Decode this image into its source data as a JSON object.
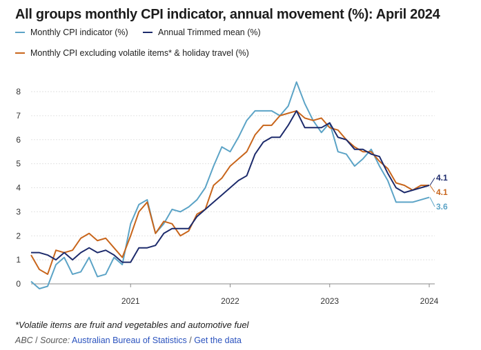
{
  "chart_data": {
    "type": "line",
    "title": "All groups monthly CPI indicator, annual movement (%): April 2024",
    "xlabel": "",
    "ylabel": "",
    "ylim": [
      0,
      8
    ],
    "yticks": [
      0,
      1,
      2,
      3,
      4,
      5,
      6,
      7,
      8
    ],
    "xticks": [
      {
        "label": "2021",
        "month_index": 12
      },
      {
        "label": "2022",
        "month_index": 24
      },
      {
        "label": "2023",
        "month_index": 36
      },
      {
        "label": "2024",
        "month_index": 48
      }
    ],
    "x_start": "Jan 2020",
    "x_end": "Apr 2024",
    "series": [
      {
        "name": "Monthly CPI indicator (%)",
        "color": "#5ba3c6",
        "end_label": "3.6",
        "values": [
          0.1,
          -0.2,
          -0.1,
          0.8,
          1.1,
          0.4,
          0.5,
          1.1,
          0.3,
          0.4,
          1.1,
          0.8,
          2.5,
          3.3,
          3.5,
          2.1,
          2.5,
          3.1,
          3.0,
          3.2,
          3.5,
          4.0,
          4.9,
          5.7,
          5.5,
          6.1,
          6.8,
          7.2,
          7.2,
          7.2,
          7.0,
          7.4,
          8.4,
          7.5,
          6.8,
          6.3,
          6.7,
          5.5,
          5.4,
          4.9,
          5.2,
          5.6,
          4.9,
          4.3,
          3.4,
          3.4,
          3.4,
          3.5,
          3.6
        ]
      },
      {
        "name": "Annual Trimmed mean (%)",
        "color": "#1c2a6b",
        "end_label": "4.1",
        "values": [
          1.3,
          1.3,
          1.2,
          1.0,
          1.3,
          1.0,
          1.3,
          1.5,
          1.3,
          1.4,
          1.2,
          0.9,
          0.9,
          1.5,
          1.5,
          1.6,
          2.1,
          2.3,
          2.3,
          2.3,
          2.8,
          3.1,
          3.4,
          3.7,
          4.0,
          4.3,
          4.5,
          5.4,
          5.9,
          6.1,
          6.1,
          6.6,
          7.2,
          6.5,
          6.5,
          6.5,
          6.7,
          6.1,
          6.0,
          5.6,
          5.6,
          5.4,
          5.3,
          4.6,
          4.0,
          3.8,
          3.9,
          4.0,
          4.1
        ]
      },
      {
        "name": "Monthly CPI excluding volatile items* & holiday travel (%)",
        "color": "#c8651b",
        "end_label": "4.1",
        "values": [
          1.2,
          0.6,
          0.4,
          1.4,
          1.3,
          1.4,
          1.9,
          2.1,
          1.8,
          1.9,
          1.5,
          1.1,
          2.0,
          3.0,
          3.4,
          2.1,
          2.6,
          2.5,
          2.0,
          2.2,
          2.9,
          3.1,
          4.1,
          4.4,
          4.9,
          5.2,
          5.5,
          6.2,
          6.6,
          6.6,
          7.0,
          7.1,
          7.2,
          6.9,
          6.8,
          6.9,
          6.5,
          6.4,
          6.0,
          5.7,
          5.5,
          5.5,
          5.1,
          4.8,
          4.2,
          4.1,
          3.9,
          4.1,
          4.1
        ]
      }
    ]
  },
  "legend": [
    {
      "label": "Monthly CPI indicator (%)",
      "color": "#5ba3c6"
    },
    {
      "label": "Annual Trimmed mean (%)",
      "color": "#1c2a6b"
    },
    {
      "label": "Monthly CPI excluding volatile items* & holiday travel (%)",
      "color": "#c8651b"
    }
  ],
  "footnote": "*Volatile items are fruit and vegetables and automotive fuel",
  "source": {
    "prefix": "ABC",
    "separator": " / ",
    "label": "Source:",
    "name": "Australian Bureau of Statistics",
    "link": "Get the data"
  }
}
